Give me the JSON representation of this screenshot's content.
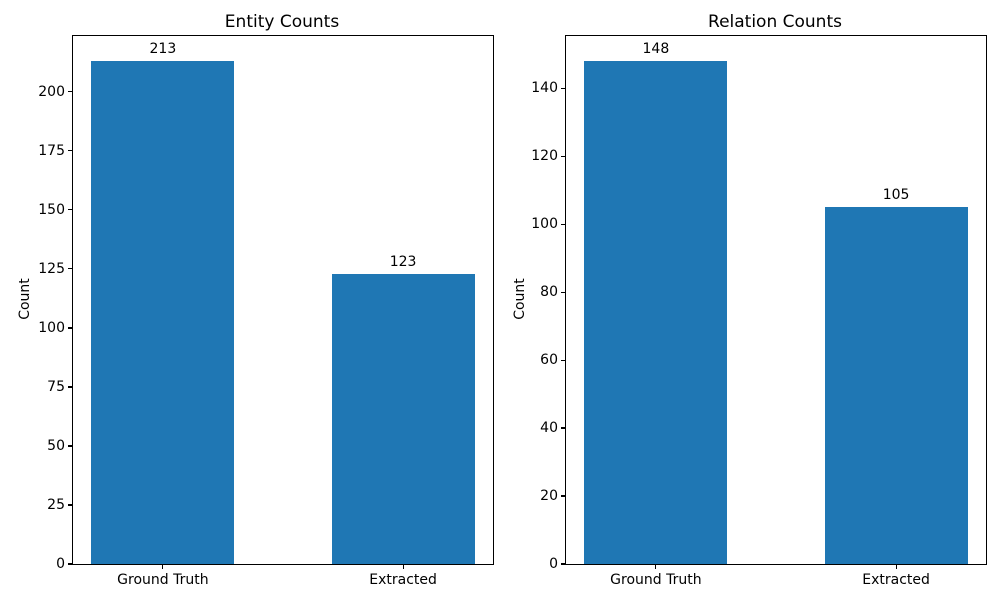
{
  "figure": {
    "background_color": "#ffffff",
    "bar_color": "#1f77b4",
    "spine_color": "#000000",
    "text_color": "#000000"
  },
  "chart_data": [
    {
      "type": "bar",
      "title": "Entity Counts",
      "xlabel": "",
      "ylabel": "Count",
      "categories": [
        "Ground Truth",
        "Extracted"
      ],
      "values": [
        213,
        123
      ],
      "ylim": [
        0,
        223.65
      ],
      "yticks": [
        0,
        25,
        50,
        75,
        100,
        125,
        150,
        175,
        200
      ],
      "grid": false,
      "legend": null,
      "bar_value_labels_shown": true
    },
    {
      "type": "bar",
      "title": "Relation Counts",
      "xlabel": "",
      "ylabel": "Count",
      "categories": [
        "Ground Truth",
        "Extracted"
      ],
      "values": [
        148,
        105
      ],
      "ylim": [
        0,
        155.4
      ],
      "yticks": [
        0,
        20,
        40,
        60,
        80,
        100,
        120,
        140
      ],
      "grid": false,
      "legend": null,
      "bar_value_labels_shown": true
    }
  ]
}
